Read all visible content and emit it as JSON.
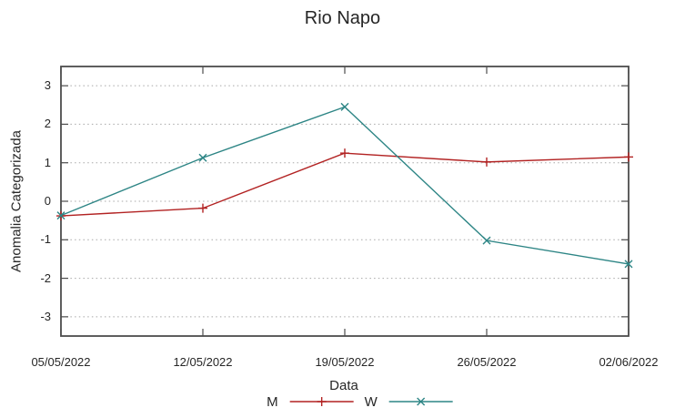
{
  "title": "Rio Napo",
  "chart_data": {
    "type": "line",
    "title": "Rio Napo",
    "xlabel": "Data",
    "ylabel": "Anomalia Categorizada",
    "x_categories": [
      "05/05/2022",
      "12/05/2022",
      "19/05/2022",
      "26/05/2022",
      "02/06/2022"
    ],
    "yticks": [
      3,
      2,
      1,
      0,
      -1,
      -2,
      -3
    ],
    "ytick_labels": [
      "3",
      "2",
      "1",
      "0",
      "-1",
      "-2",
      "-3"
    ],
    "ylim": [
      -3.5,
      3.5
    ],
    "grid": "horizontal-dotted",
    "legend_position": "bottom-center",
    "series": [
      {
        "name": "M",
        "color": "#b22222",
        "marker": "plus",
        "values": [
          -0.38,
          -0.18,
          1.25,
          1.02,
          1.15
        ]
      },
      {
        "name": "W",
        "color": "#2d8585",
        "marker": "cross",
        "values": [
          -0.37,
          1.13,
          2.45,
          -1.02,
          -1.63
        ]
      }
    ]
  }
}
